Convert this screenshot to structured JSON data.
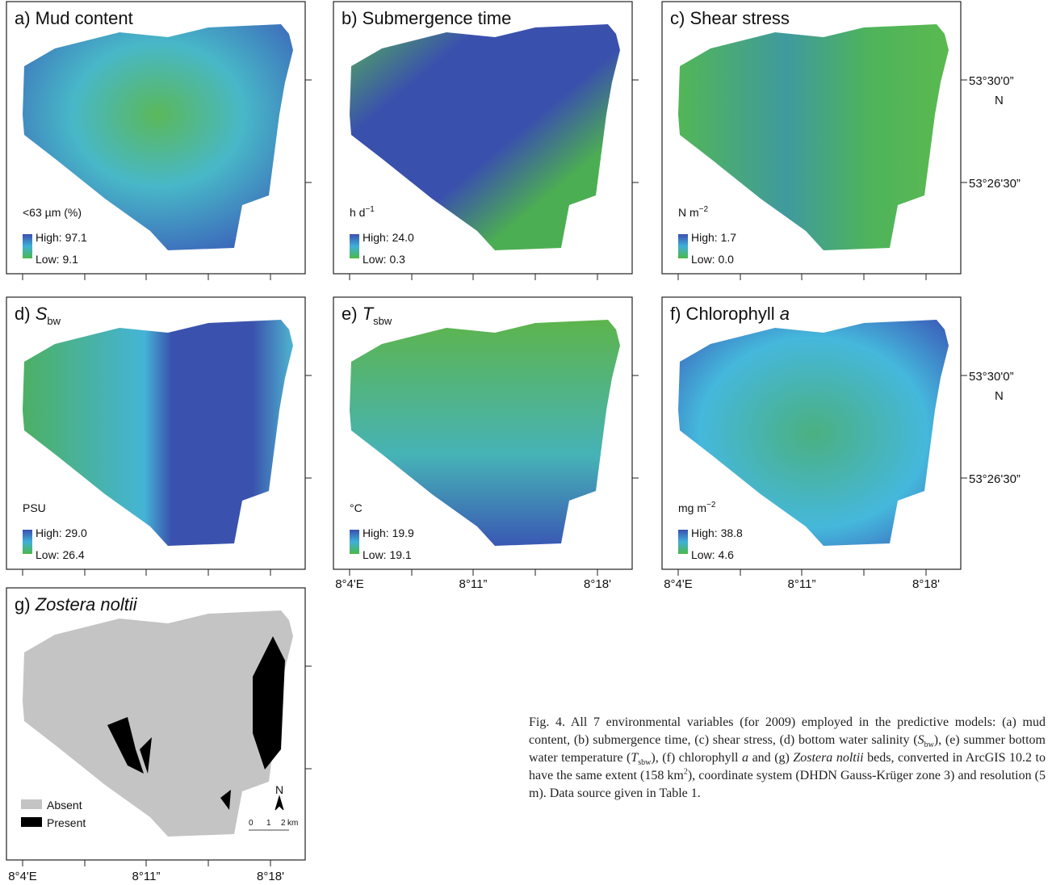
{
  "panels": [
    {
      "title": [
        "a) Mud content"
      ],
      "unit": [
        "<63 µm (%)"
      ],
      "high": "High: 97.1",
      "low": "Low: 9.1"
    },
    {
      "title": [
        "b) Submergence time"
      ],
      "unit": [
        "h d",
        "−1"
      ],
      "high": "High: 24.0",
      "low": "Low: 0.3"
    },
    {
      "title": [
        "c) Shear stress"
      ],
      "unit": [
        "N m",
        "−2"
      ],
      "high": "High: 1.7",
      "low": "Low: 0.0"
    },
    {
      "title": [
        "d) ",
        "S",
        "bw"
      ],
      "unit": [
        "PSU"
      ],
      "high": "High: 29.0",
      "low": "Low: 26.4"
    },
    {
      "title": [
        "e) ",
        "T",
        "sbw"
      ],
      "unit": [
        "°C"
      ],
      "high": "High: 19.9",
      "low": "Low: 19.1"
    },
    {
      "title": [
        "f) Chlorophyll ",
        "a"
      ],
      "unit": [
        "mg m",
        "−2"
      ],
      "high": "High: 38.8",
      "low": "Low: 4.6"
    },
    {
      "title": [
        "g) ",
        "Zostera noltii"
      ],
      "legend": [
        "Absent",
        "Present"
      ],
      "north": "N",
      "scale": [
        "0",
        "1",
        "2",
        "km"
      ]
    }
  ],
  "lat_labels": [
    "53°30'0”",
    "N",
    "53°26'30”"
  ],
  "lon_labels": [
    "8°4'E",
    "8°11”",
    "8°18'"
  ],
  "caption": [
    "Fig. 4. All 7 environmental variables (for 2009) employed in the predictive models: (a) mud content, (b) submergence time, (c) shear stress, (d) bottom water salinity (",
    "S",
    "bw",
    "), (e) summer bottom water temperature (",
    "T",
    "sbw",
    "), (f) chlorophyll ",
    "a",
    " and (g) ",
    "Zostera noltii",
    " beds, converted in ArcGIS 10.2 to have the same extent (158 km",
    "2",
    "), coordinate system (DHDN Gauss-Krüger zone 3) and resolution (5 m). Data source given in Table 1."
  ]
}
